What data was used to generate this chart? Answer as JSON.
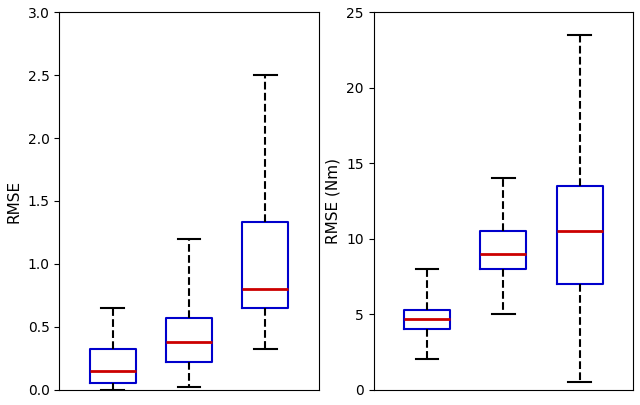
{
  "left_boxes": [
    {
      "med": 0.15,
      "q1": 0.05,
      "q3": 0.32,
      "whislo": 0.0,
      "whishi": 0.65
    },
    {
      "med": 0.38,
      "q1": 0.22,
      "q3": 0.57,
      "whislo": 0.02,
      "whishi": 1.2
    },
    {
      "med": 0.8,
      "q1": 0.65,
      "q3": 1.33,
      "whislo": 0.32,
      "whishi": 2.5
    }
  ],
  "right_boxes": [
    {
      "med": 4.7,
      "q1": 4.0,
      "q3": 5.3,
      "whislo": 2.0,
      "whishi": 8.0
    },
    {
      "med": 9.0,
      "q1": 8.0,
      "q3": 10.5,
      "whislo": 5.0,
      "whishi": 14.0
    },
    {
      "med": 10.5,
      "q1": 7.0,
      "q3": 13.5,
      "whislo": 0.5,
      "whishi": 23.5
    }
  ],
  "left_ylabel": "RMSE",
  "right_ylabel": "RMSE (Nm)",
  "left_ylim": [
    0,
    3
  ],
  "right_ylim": [
    0,
    25
  ],
  "left_yticks": [
    0,
    0.5,
    1,
    1.5,
    2,
    2.5,
    3
  ],
  "right_yticks": [
    0,
    5,
    10,
    15,
    20,
    25
  ],
  "box_color": "#0000cc",
  "median_color": "#cc0000",
  "whisker_color": "#000000",
  "cap_color": "#000000",
  "flier_color": "#000000",
  "bg_color": "#ffffff"
}
